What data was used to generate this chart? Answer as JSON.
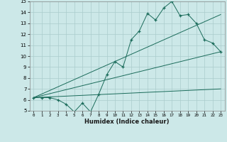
{
  "title": "",
  "xlabel": "Humidex (Indice chaleur)",
  "bg_color": "#cce8e8",
  "grid_color": "#aacccc",
  "line_color": "#1a6b5a",
  "xlim": [
    -0.5,
    23.5
  ],
  "ylim": [
    5,
    15
  ],
  "xticks": [
    0,
    1,
    2,
    3,
    4,
    5,
    6,
    7,
    8,
    9,
    10,
    11,
    12,
    13,
    14,
    15,
    16,
    17,
    18,
    19,
    20,
    21,
    22,
    23
  ],
  "yticks": [
    5,
    6,
    7,
    8,
    9,
    10,
    11,
    12,
    13,
    14,
    15
  ],
  "data_x": [
    0,
    1,
    2,
    3,
    4,
    5,
    6,
    7,
    8,
    9,
    10,
    11,
    12,
    13,
    14,
    15,
    16,
    17,
    18,
    19,
    20,
    21,
    22,
    23
  ],
  "data_y": [
    6.2,
    6.2,
    6.2,
    6.0,
    5.6,
    4.9,
    5.7,
    4.9,
    6.5,
    8.3,
    9.5,
    9.0,
    11.5,
    12.3,
    13.9,
    13.3,
    14.4,
    15.0,
    13.7,
    13.8,
    13.0,
    11.5,
    11.2,
    10.4
  ],
  "line1_x": [
    0,
    23
  ],
  "line1_y": [
    6.2,
    10.4
  ],
  "line2_x": [
    0,
    23
  ],
  "line2_y": [
    6.2,
    13.8
  ],
  "line3_x": [
    0,
    23
  ],
  "line3_y": [
    6.2,
    7.0
  ]
}
